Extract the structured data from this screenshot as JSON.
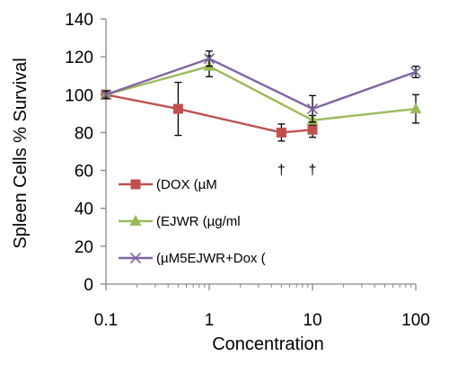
{
  "chart_data": {
    "type": "line",
    "xscale": "log",
    "xlim": [
      0.1,
      100
    ],
    "ylim": [
      0,
      140
    ],
    "xlabel": "Concentration",
    "ylabel": "Spleen Cells % Survival",
    "x_ticks": [
      "0.1",
      "1",
      "10",
      "100"
    ],
    "y_ticks": [
      "0",
      "20",
      "40",
      "60",
      "80",
      "100",
      "120",
      "140"
    ],
    "grid": false,
    "legend_position": "bottom-left inside",
    "series": [
      {
        "name": "(DOX (µM",
        "color": "#c0504d",
        "marker": "square",
        "x": [
          0.1,
          0.5,
          5,
          10
        ],
        "y": [
          100,
          92.5,
          80,
          81.5
        ],
        "err": [
          2,
          14,
          4.5,
          4
        ]
      },
      {
        "name": "(EJWR (µg/ml",
        "color": "#9bbb59",
        "marker": "triangle",
        "x": [
          0.1,
          1,
          10,
          100
        ],
        "y": [
          100,
          115,
          86.5,
          92.5
        ],
        "err": [
          2,
          5.5,
          2.5,
          7.5
        ]
      },
      {
        "name": "(µM5EJWR+Dox (",
        "color": "#8064a2",
        "marker": "x",
        "x": [
          0.1,
          1,
          10,
          100
        ],
        "y": [
          100,
          119,
          92.5,
          112
        ],
        "err": [
          2,
          4,
          7,
          3
        ]
      }
    ],
    "annotations": [
      {
        "text": "†",
        "x": 5,
        "y": 65
      },
      {
        "text": "†",
        "x": 10,
        "y": 65
      }
    ]
  }
}
